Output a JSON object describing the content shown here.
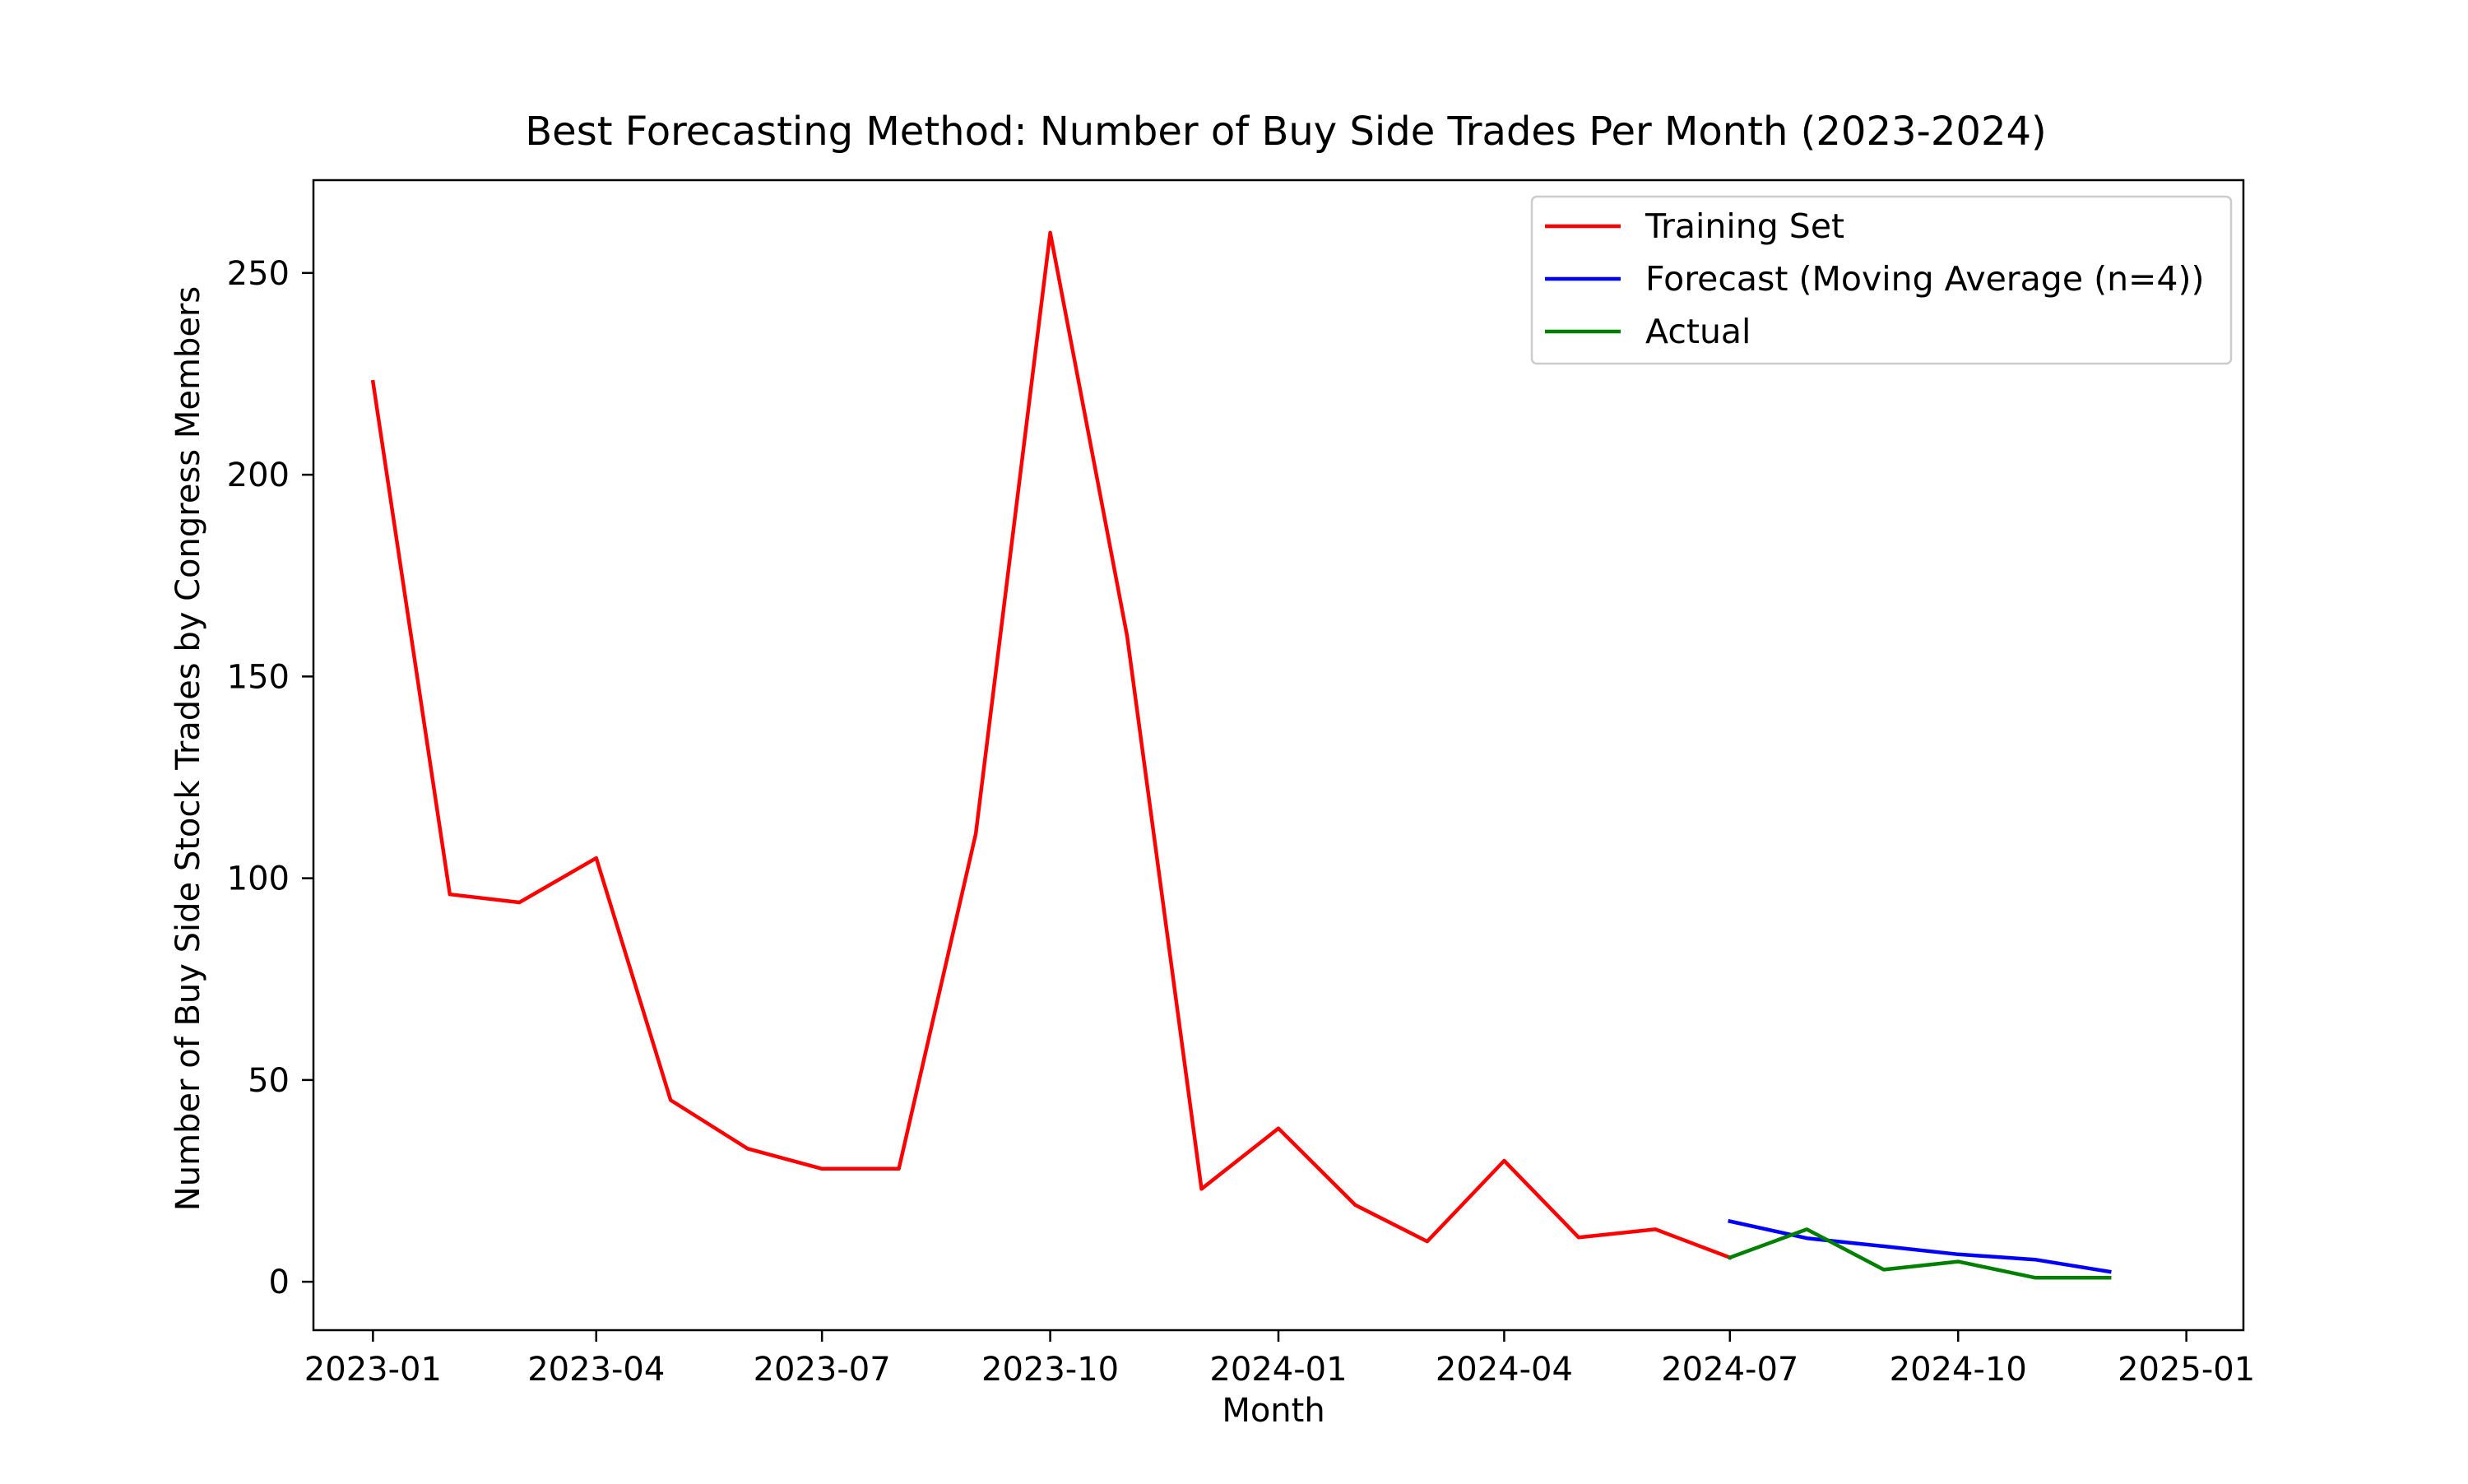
{
  "chart_data": {
    "type": "line",
    "title": "Best Forecasting Method: Number of Buy Side Trades Per Month (2023-2024)",
    "xlabel": "Month",
    "ylabel": "Number of Buy Side Stock Trades by Congress Members",
    "x_type": "date",
    "xlim": [
      "2022-12-08",
      "2025-01-24"
    ],
    "ylim": [
      -12,
      273
    ],
    "x_ticks": [
      "2023-01-01",
      "2023-04-01",
      "2023-07-01",
      "2023-10-01",
      "2024-01-01",
      "2024-04-01",
      "2024-07-01",
      "2024-10-01",
      "2025-01-01"
    ],
    "x_tick_labels": [
      "2023-01",
      "2023-04",
      "2023-07",
      "2023-10",
      "2024-01",
      "2024-04",
      "2024-07",
      "2024-10",
      "2025-01"
    ],
    "y_ticks": [
      0,
      50,
      100,
      150,
      200,
      250
    ],
    "y_tick_labels": [
      "0",
      "50",
      "100",
      "150",
      "200",
      "250"
    ],
    "grid": false,
    "legend_position": "top-right",
    "series": [
      {
        "name": "Training Set",
        "color": "#ff0000",
        "x": [
          "2023-01-01",
          "2023-02-01",
          "2023-03-01",
          "2023-04-01",
          "2023-05-01",
          "2023-06-01",
          "2023-07-01",
          "2023-08-01",
          "2023-09-01",
          "2023-10-01",
          "2023-11-01",
          "2023-12-01",
          "2024-01-01",
          "2024-02-01",
          "2024-03-01",
          "2024-04-01",
          "2024-05-01",
          "2024-06-01",
          "2024-07-01"
        ],
        "values": [
          223,
          96,
          94,
          105,
          45,
          33,
          28,
          28,
          111,
          260,
          160,
          23,
          38,
          19,
          10,
          30,
          11,
          13,
          6
        ]
      },
      {
        "name": "Forecast (Moving Average (n=4))",
        "color": "#0000ff",
        "x": [
          "2024-07-01",
          "2024-08-01",
          "2024-09-01",
          "2024-10-01",
          "2024-11-01",
          "2024-12-01"
        ],
        "values": [
          15,
          10.8,
          8.8,
          6.8,
          5.5,
          2.5
        ]
      },
      {
        "name": "Actual",
        "color": "#008000",
        "x": [
          "2024-07-01",
          "2024-08-01",
          "2024-09-01",
          "2024-10-01",
          "2024-11-01",
          "2024-12-01"
        ],
        "values": [
          6,
          13,
          3,
          5,
          1,
          1
        ]
      }
    ]
  }
}
